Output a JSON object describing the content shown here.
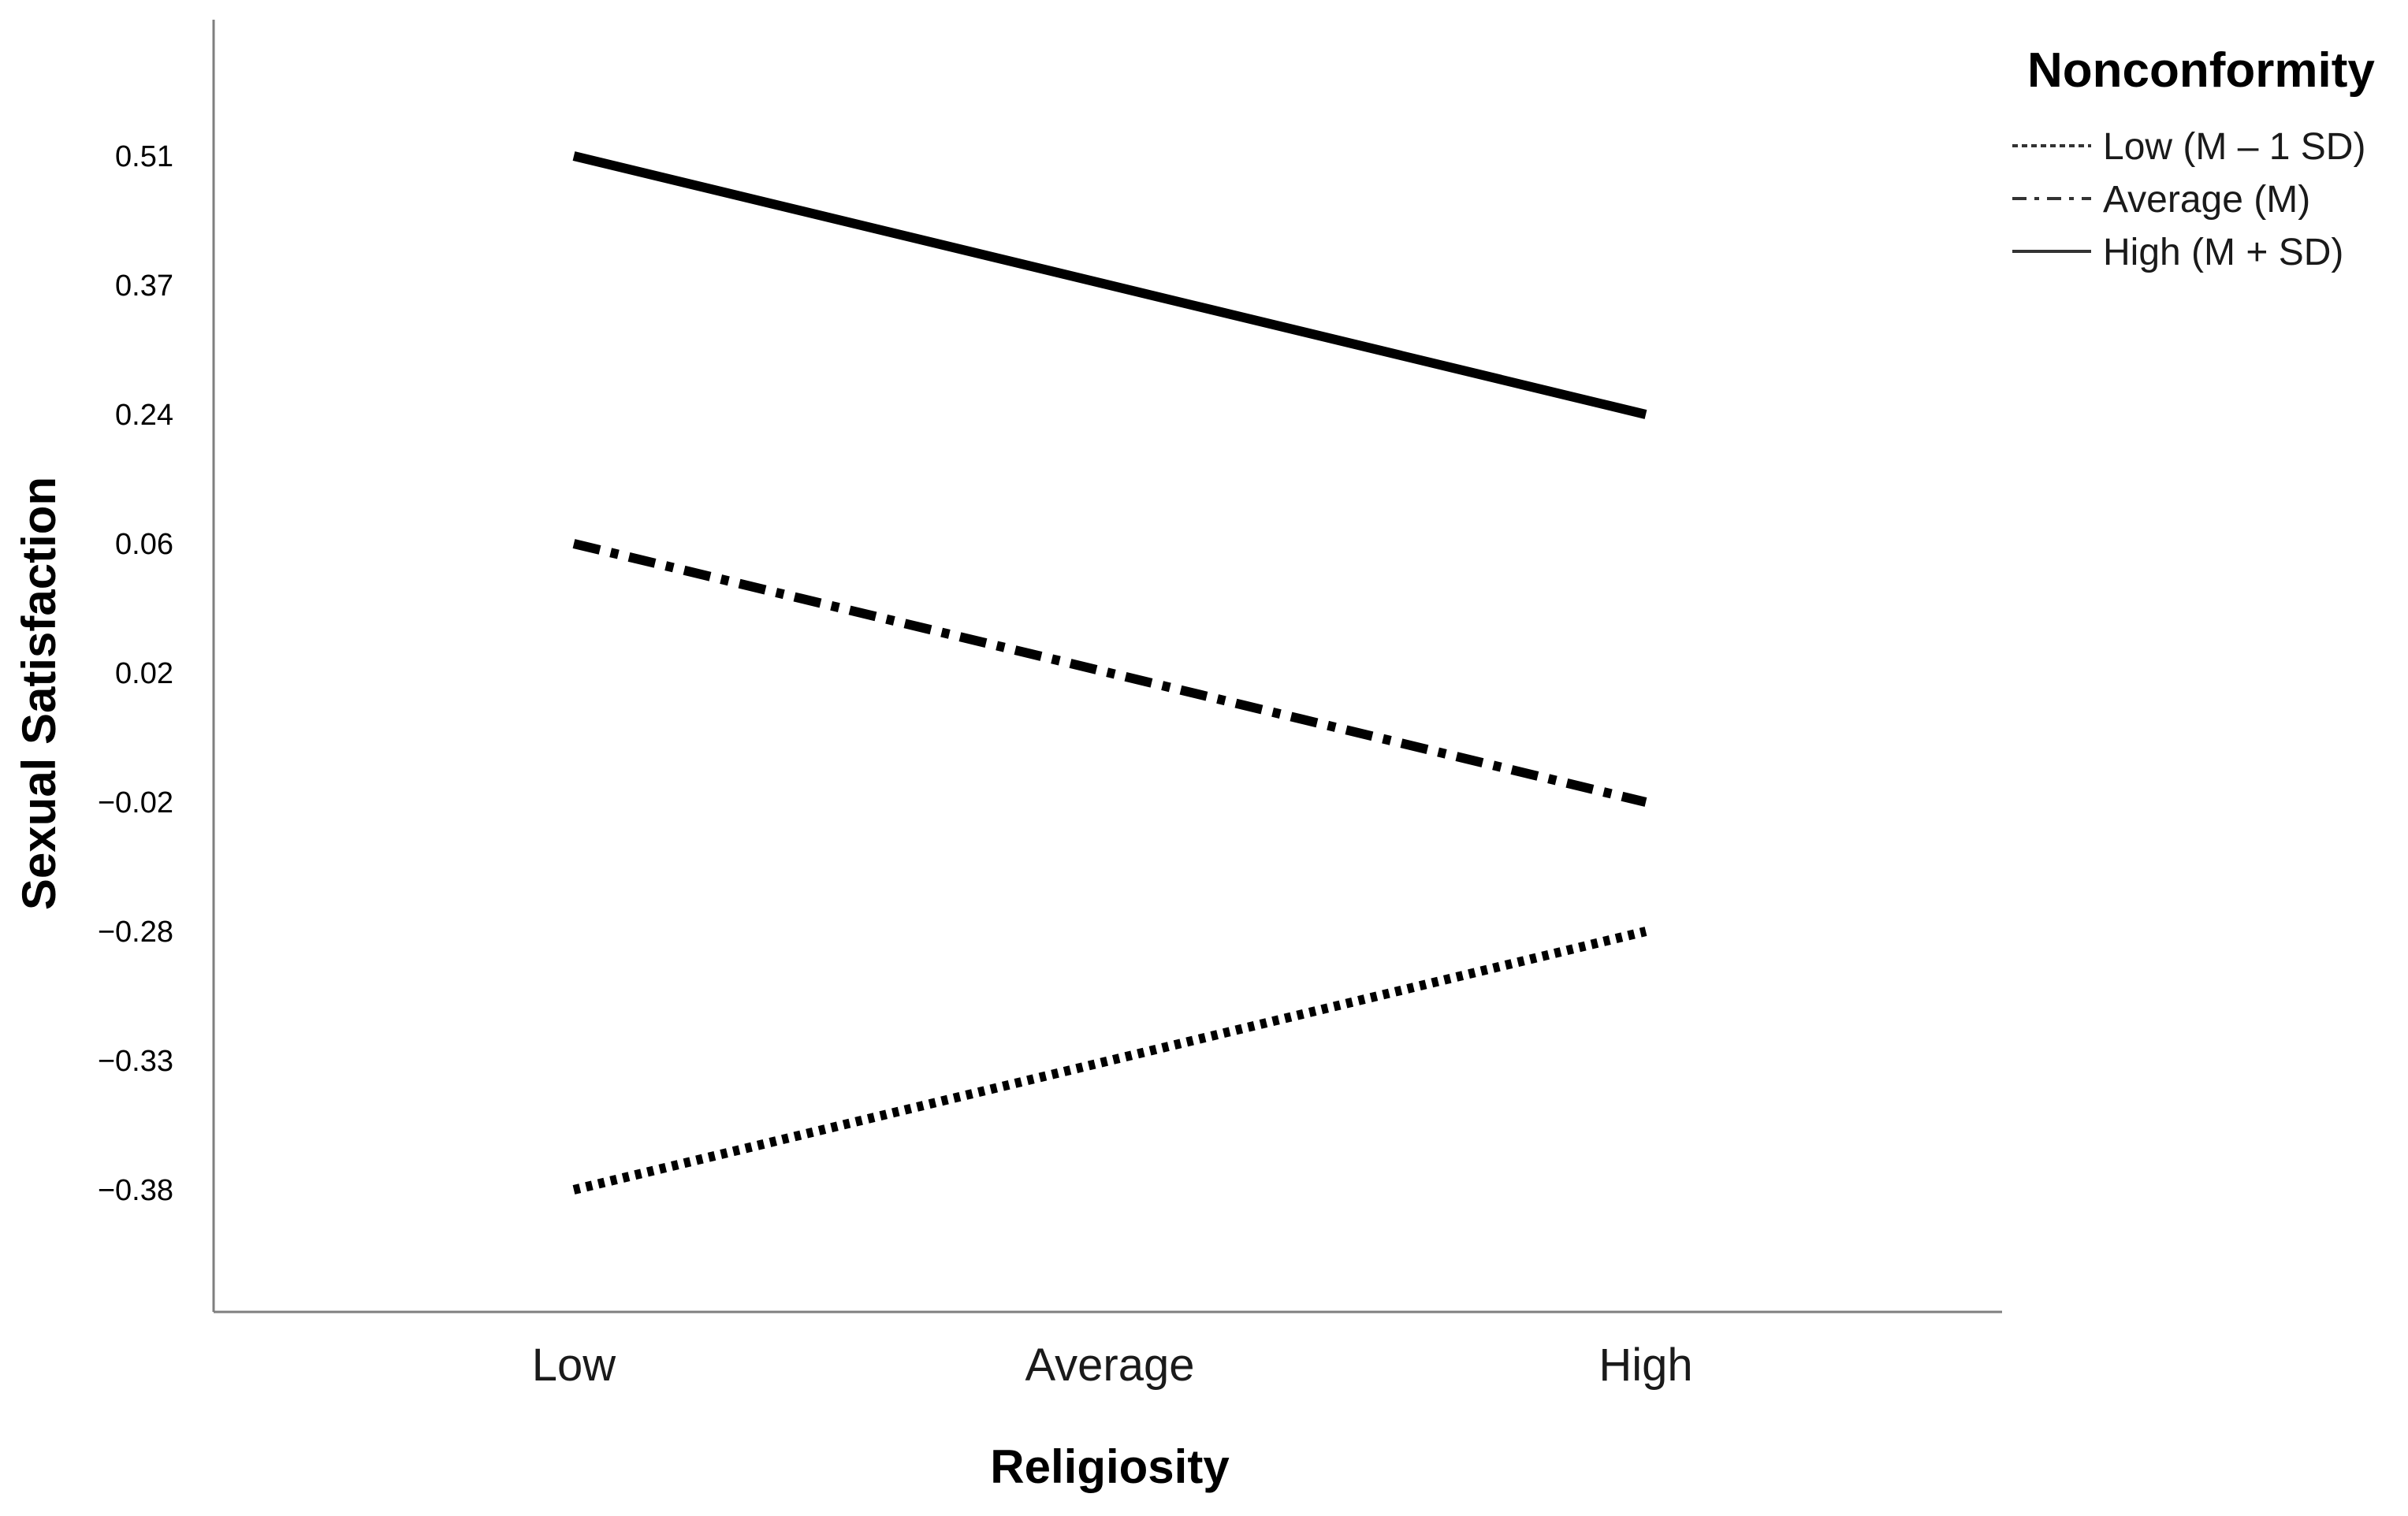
{
  "chart_data": {
    "type": "line",
    "title": "",
    "xlabel": "Religiosity",
    "ylabel": "Sexual Satisfaction",
    "categories": [
      "Low",
      "Average",
      "High"
    ],
    "y_ticks": [
      "0.51",
      "0.37",
      "0.24",
      "0.06",
      "0.02",
      "−0.02",
      "−0.28",
      "−0.33",
      "−0.38"
    ],
    "grid": false,
    "legend": {
      "title": "Nonconformity",
      "placement": "top-right"
    },
    "series": [
      {
        "name": "Low (M – 1 SD)",
        "style": "dotted",
        "x": [
          "Low",
          "High"
        ],
        "y": [
          -0.38,
          -0.28
        ]
      },
      {
        "name": "Average (M)",
        "style": "dash-dot",
        "x": [
          "Low",
          "High"
        ],
        "y": [
          0.06,
          -0.02
        ]
      },
      {
        "name": "High (M + SD)",
        "style": "solid",
        "x": [
          "Low",
          "High"
        ],
        "y": [
          0.51,
          0.24
        ]
      }
    ],
    "line_color": "#000000",
    "axis_color": "#7f7f7f"
  }
}
